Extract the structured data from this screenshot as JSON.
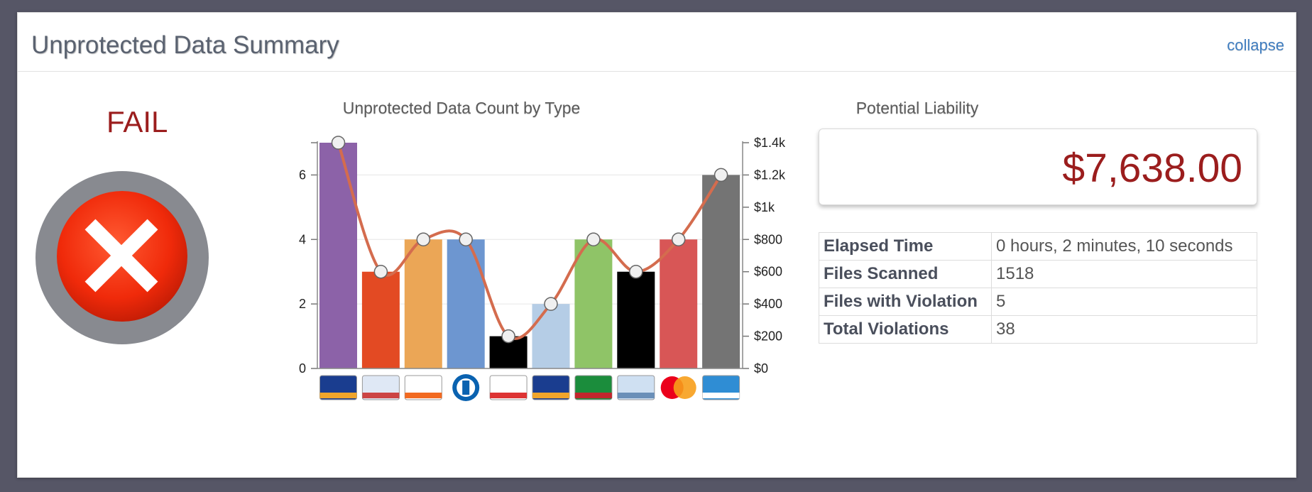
{
  "header": {
    "title": "Unprotected Data Summary",
    "collapse_label": "collapse"
  },
  "status": {
    "label": "FAIL",
    "icon": "fail-x-icon",
    "color": "#9b1d1d"
  },
  "chart_data": {
    "type": "bar",
    "title": "Unprotected Data Count by Type",
    "categories": [
      "visa-card-icon",
      "social-security-card-icon",
      "discover-card-icon",
      "diners-club-icon",
      "calendar-icon",
      "visa-card-icon",
      "jcb-card-icon",
      "id-card-icon",
      "mastercard-icon",
      "american-express-icon"
    ],
    "series": [
      {
        "values": [
          7,
          3,
          4,
          4,
          1,
          2,
          4,
          3,
          4,
          6
        ],
        "colors": [
          "#8c62a8",
          "#e34a23",
          "#eba656",
          "#6d96d0",
          "#000000",
          "#b5cde6",
          "#8fc467",
          "#000000",
          "#d85656",
          "#747474"
        ]
      },
      {
        "type": "line",
        "axis": "right",
        "values": [
          1400,
          600,
          800,
          800,
          200,
          400,
          800,
          600,
          800,
          1200
        ],
        "color": "#d46c4e"
      }
    ],
    "y_left": {
      "ticks": [
        "0",
        "2",
        "4",
        "6"
      ],
      "ylim": [
        0,
        7
      ]
    },
    "y_right": {
      "ticks": [
        "$0",
        "$200",
        "$400",
        "$600",
        "$800",
        "$1k",
        "$1.2k",
        "$1.4k"
      ],
      "ylim": [
        0,
        1400
      ]
    },
    "grid": "horizontal",
    "legend": "none"
  },
  "liability": {
    "title": "Potential Liability",
    "value": "$7,638.00"
  },
  "stats": [
    {
      "label": "Elapsed Time",
      "value": "0 hours, 2 minutes, 10 seconds"
    },
    {
      "label": "Files Scanned",
      "value": "1518"
    },
    {
      "label": "Files with Violation",
      "value": "5"
    },
    {
      "label": "Total Violations",
      "value": "38"
    }
  ]
}
